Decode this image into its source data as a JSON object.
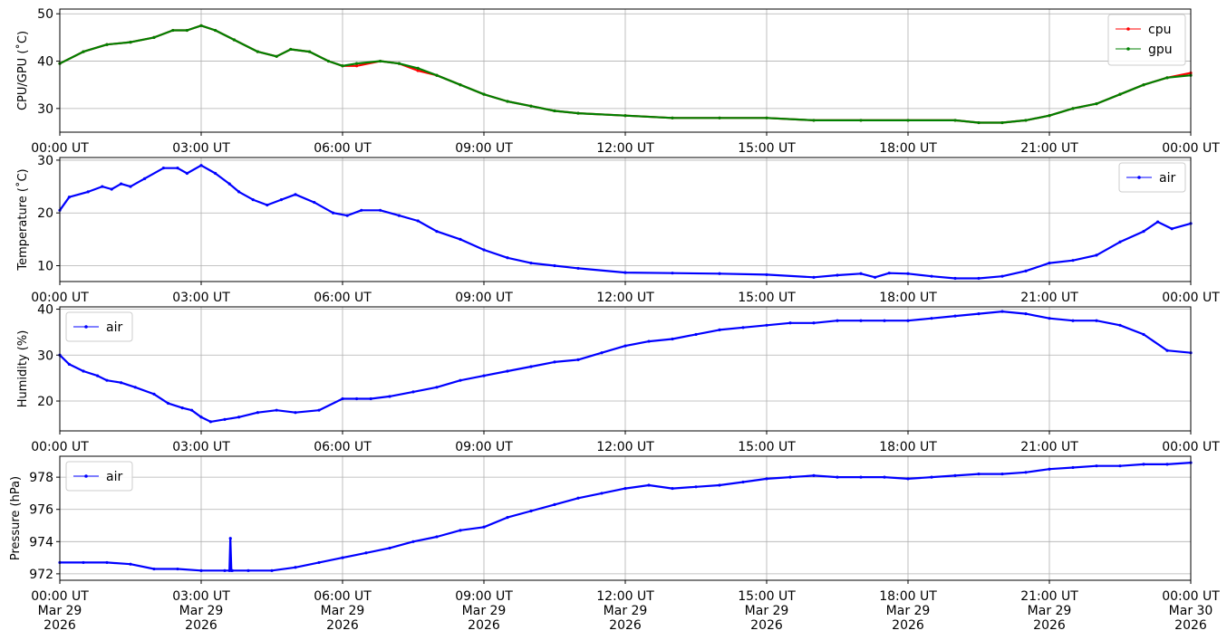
{
  "colors": {
    "cpu": "#ff0000",
    "gpu": "#008000",
    "air": "#0000ff",
    "grid": "#b0b0b0"
  },
  "chart_data": [
    {
      "type": "line",
      "ylabel": "CPU/GPU (˚C)",
      "ylim": [
        25,
        51
      ],
      "yticks": [
        30,
        40,
        50
      ],
      "xlim": [
        0,
        24
      ],
      "xticks": [
        0,
        3,
        6,
        9,
        12,
        15,
        18,
        21,
        24
      ],
      "xtick_labels": [
        "00:00 UT",
        "03:00 UT",
        "06:00 UT",
        "09:00 UT",
        "12:00 UT",
        "15:00 UT",
        "18:00 UT",
        "21:00 UT",
        "00:00 UT"
      ],
      "grid": true,
      "legend": "top-right",
      "series": [
        {
          "name": "cpu",
          "color": "#ff0000",
          "x": [
            0,
            0.5,
            1,
            1.5,
            2,
            2.4,
            2.7,
            3,
            3.3,
            3.7,
            4.2,
            4.6,
            4.9,
            5.3,
            5.7,
            6,
            6.3,
            6.8,
            7.2,
            7.6,
            8,
            8.5,
            9,
            9.5,
            10,
            10.5,
            11,
            12,
            13,
            14,
            15,
            16,
            17,
            18,
            19,
            19.5,
            20,
            20.5,
            21,
            21.5,
            22,
            22.5,
            23,
            23.5,
            24
          ],
          "values": [
            39.5,
            42,
            43.5,
            44,
            45,
            46.5,
            46.5,
            47.5,
            46.5,
            44.5,
            42,
            41,
            42.5,
            42,
            40,
            39,
            39,
            40,
            39.5,
            38,
            37,
            35,
            33,
            31.5,
            30.5,
            29.5,
            29,
            28.5,
            28,
            28,
            28,
            27.5,
            27.5,
            27.5,
            27.5,
            27,
            27,
            27.5,
            28.5,
            30,
            31,
            33,
            35,
            36.5,
            37.5
          ]
        },
        {
          "name": "gpu",
          "color": "#008000",
          "x": [
            0,
            0.5,
            1,
            1.5,
            2,
            2.4,
            2.7,
            3,
            3.3,
            3.7,
            4.2,
            4.6,
            4.9,
            5.3,
            5.7,
            6,
            6.3,
            6.8,
            7.2,
            7.6,
            8,
            8.5,
            9,
            9.5,
            10,
            10.5,
            11,
            12,
            13,
            14,
            15,
            16,
            17,
            18,
            19,
            19.5,
            20,
            20.5,
            21,
            21.5,
            22,
            22.5,
            23,
            23.5,
            24
          ],
          "values": [
            39.5,
            42,
            43.5,
            44,
            45,
            46.5,
            46.5,
            47.5,
            46.5,
            44.5,
            42,
            41,
            42.5,
            42,
            40,
            39,
            39.5,
            40,
            39.5,
            38.5,
            37,
            35,
            33,
            31.5,
            30.5,
            29.5,
            29,
            28.5,
            28,
            28,
            28,
            27.5,
            27.5,
            27.5,
            27.5,
            27,
            27,
            27.5,
            28.5,
            30,
            31,
            33,
            35,
            36.5,
            37
          ]
        }
      ]
    },
    {
      "type": "line",
      "ylabel": "Temperature (˚C)",
      "ylim": [
        7,
        30.5
      ],
      "yticks": [
        10,
        20,
        30
      ],
      "xlim": [
        0,
        24
      ],
      "xticks": [
        0,
        3,
        6,
        9,
        12,
        15,
        18,
        21,
        24
      ],
      "xtick_labels": [
        "00:00 UT",
        "03:00 UT",
        "06:00 UT",
        "09:00 UT",
        "12:00 UT",
        "15:00 UT",
        "18:00 UT",
        "21:00 UT",
        "00:00 UT"
      ],
      "grid": true,
      "legend": "top-right",
      "series": [
        {
          "name": "air",
          "color": "#0000ff",
          "x": [
            0,
            0.2,
            0.6,
            0.9,
            1.1,
            1.3,
            1.5,
            1.8,
            2.2,
            2.5,
            2.7,
            3,
            3.3,
            3.6,
            3.8,
            4.1,
            4.4,
            4.7,
            5,
            5.4,
            5.8,
            6.1,
            6.4,
            6.8,
            7.2,
            7.6,
            8,
            8.5,
            9,
            9.5,
            10,
            10.5,
            11,
            12,
            13,
            14,
            15,
            16,
            16.5,
            17,
            17.3,
            17.6,
            18,
            18.5,
            19,
            19.5,
            20,
            20.5,
            21,
            21.5,
            22,
            22.5,
            23,
            23.3,
            23.6,
            24
          ],
          "values": [
            20.5,
            23,
            24,
            25,
            24.5,
            25.5,
            25,
            26.5,
            28.5,
            28.5,
            27.5,
            29,
            27.5,
            25.5,
            24,
            22.5,
            21.5,
            22.5,
            23.5,
            22,
            20,
            19.5,
            20.5,
            20.5,
            19.5,
            18.5,
            16.5,
            15,
            13,
            11.5,
            10.5,
            10,
            9.5,
            8.7,
            8.6,
            8.5,
            8.3,
            7.8,
            8.2,
            8.5,
            7.8,
            8.6,
            8.5,
            8,
            7.6,
            7.6,
            8,
            9,
            10.5,
            11,
            12,
            14.5,
            16.5,
            18.3,
            17,
            18
          ]
        }
      ]
    },
    {
      "type": "line",
      "ylabel": "Humidity (%)",
      "ylim": [
        13.5,
        40.5
      ],
      "yticks": [
        20,
        30,
        40
      ],
      "xlim": [
        0,
        24
      ],
      "xticks": [
        0,
        3,
        6,
        9,
        12,
        15,
        18,
        21,
        24
      ],
      "xtick_labels": [
        "00:00 UT",
        "03:00 UT",
        "06:00 UT",
        "09:00 UT",
        "12:00 UT",
        "15:00 UT",
        "18:00 UT",
        "21:00 UT",
        "00:00 UT"
      ],
      "grid": true,
      "legend": "top-left",
      "series": [
        {
          "name": "air",
          "color": "#0000ff",
          "x": [
            0,
            0.2,
            0.5,
            0.8,
            1,
            1.3,
            1.6,
            2,
            2.3,
            2.6,
            2.8,
            3,
            3.2,
            3.5,
            3.8,
            4.2,
            4.6,
            5,
            5.5,
            6,
            6.3,
            6.6,
            7,
            7.5,
            8,
            8.5,
            9,
            9.5,
            10,
            10.5,
            11,
            11.5,
            12,
            12.5,
            13,
            13.5,
            14,
            14.5,
            15,
            15.5,
            16,
            16.5,
            17,
            17.5,
            18,
            18.5,
            19,
            19.5,
            20,
            20.5,
            21,
            21.5,
            22,
            22.5,
            23,
            23.5,
            24
          ],
          "values": [
            30,
            28,
            26.5,
            25.5,
            24.5,
            24,
            23,
            21.5,
            19.5,
            18.5,
            18,
            16.5,
            15.5,
            16,
            16.5,
            17.5,
            18,
            17.5,
            18,
            20.5,
            20.5,
            20.5,
            21,
            22,
            23,
            24.5,
            25.5,
            26.5,
            27.5,
            28.5,
            29,
            30.5,
            32,
            33,
            33.5,
            34.5,
            35.5,
            36,
            36.5,
            37,
            37,
            37.5,
            37.5,
            37.5,
            37.5,
            38,
            38.5,
            39,
            39.5,
            39,
            38,
            37.5,
            37.5,
            36.5,
            34.5,
            31,
            30.5
          ]
        }
      ]
    },
    {
      "type": "line",
      "ylabel": "Pressure (hPa)",
      "ylim": [
        971.6,
        979.3
      ],
      "yticks": [
        972,
        974,
        976,
        978
      ],
      "xlim": [
        0,
        24
      ],
      "xticks": [
        0,
        3,
        6,
        9,
        12,
        15,
        18,
        21,
        24
      ],
      "xtick_labels": [
        "00:00 UT\nMar 29\n2026",
        "03:00 UT\nMar 29\n2026",
        "06:00 UT\nMar 29\n2026",
        "09:00 UT\nMar 29\n2026",
        "12:00 UT\nMar 29\n2026",
        "15:00 UT\nMar 29\n2026",
        "18:00 UT\nMar 29\n2026",
        "21:00 UT\nMar 29\n2026",
        "00:00 UT\nMar 30\n2026"
      ],
      "grid": true,
      "legend": "top-left",
      "series": [
        {
          "name": "air",
          "color": "#0000ff",
          "x": [
            0,
            0.5,
            1,
            1.5,
            2,
            2.5,
            3,
            3.5,
            3.6,
            3.62,
            3.64,
            3.66,
            4,
            4.5,
            5,
            5.5,
            6,
            6.5,
            7,
            7.5,
            8,
            8.5,
            9,
            9.5,
            10,
            10.5,
            11,
            11.5,
            12,
            12.5,
            13,
            13.5,
            14,
            14.5,
            15,
            15.5,
            16,
            16.5,
            17,
            17.5,
            18,
            18.5,
            19,
            19.5,
            20,
            20.5,
            21,
            21.5,
            22,
            22.5,
            23,
            23.5,
            24
          ],
          "values": [
            972.7,
            972.7,
            972.7,
            972.6,
            972.3,
            972.3,
            972.2,
            972.2,
            972.2,
            974.2,
            972.2,
            972.2,
            972.2,
            972.2,
            972.4,
            972.7,
            973.0,
            973.3,
            973.6,
            974.0,
            974.3,
            974.7,
            974.9,
            975.5,
            975.9,
            976.3,
            976.7,
            977.0,
            977.3,
            977.5,
            977.3,
            977.4,
            977.5,
            977.7,
            977.9,
            978.0,
            978.1,
            978.0,
            978.0,
            978.0,
            977.9,
            978.0,
            978.1,
            978.2,
            978.2,
            978.3,
            978.5,
            978.6,
            978.7,
            978.7,
            978.8,
            978.8,
            978.9
          ]
        }
      ]
    }
  ]
}
